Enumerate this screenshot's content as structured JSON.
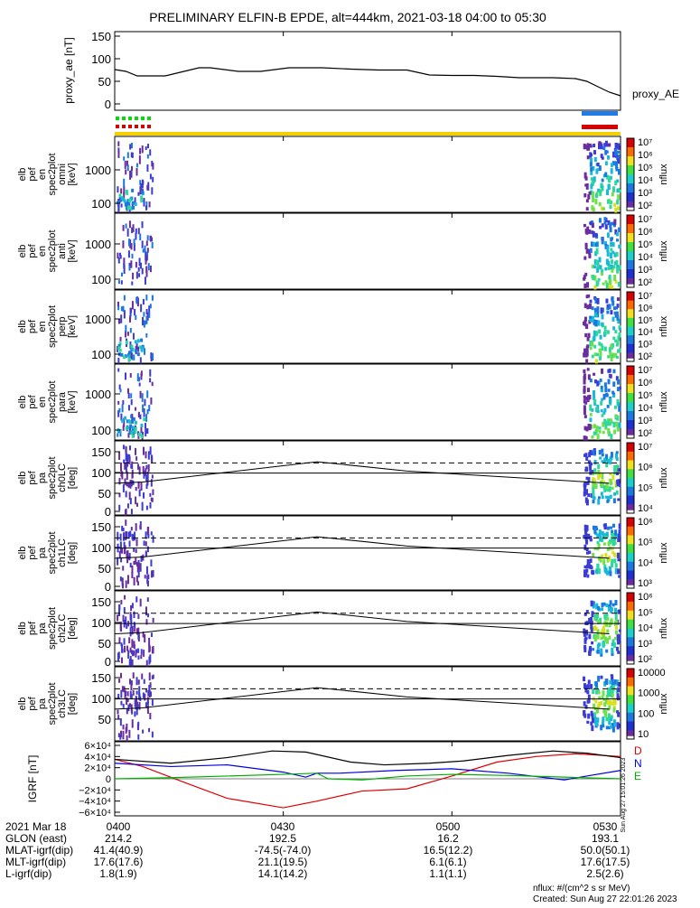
{
  "title": "PRELIMINARY ELFIN-B EPDE, alt=444km, 2021-03-18 04:00 to 05:30",
  "colors": {
    "frame": "#000000",
    "ae_line": "#000000",
    "bar_blue": "#1e7be8",
    "bar_red": "#d80000",
    "bar_green": "#00e000",
    "bar_yellow": "#f5d000",
    "igrf_D": "#e00000",
    "igrf_N": "#0000e0",
    "igrf_E": "#00b000",
    "igrf_total": "#000000"
  },
  "chart_data": [
    {
      "type": "line",
      "ylabel": "proxy_ae [nT]",
      "ylim": [
        0,
        150
      ],
      "yticks": [
        "150",
        "100",
        "50",
        "0"
      ],
      "series": [
        {
          "name": "proxy_AE",
          "x": [
            0,
            2,
            4,
            9,
            15,
            17,
            22,
            26,
            31,
            37,
            42,
            47,
            52,
            56,
            60,
            64,
            68,
            72,
            75,
            78,
            80,
            82,
            84,
            86,
            88,
            90
          ],
          "values": [
            76,
            72,
            62,
            62,
            80,
            80,
            72,
            72,
            80,
            80,
            77,
            75,
            75,
            64,
            63,
            63,
            61,
            58,
            58,
            58,
            57,
            56,
            50,
            38,
            26,
            18
          ]
        }
      ]
    },
    {
      "type": "heatmap",
      "ylabel": "elb pef en spec2plot omni [keV]",
      "yticks": [
        "1000",
        "100"
      ],
      "colorbar": {
        "label": "nflux",
        "ticks": [
          "10⁷",
          "10⁶",
          "10⁵",
          "10⁴",
          "10³",
          "10²"
        ]
      }
    },
    {
      "type": "heatmap",
      "ylabel": "elb pef en spec2plot anti [keV]",
      "yticks": [
        "1000",
        "100"
      ],
      "colorbar": {
        "label": "nflux",
        "ticks": [
          "10⁷",
          "10⁶",
          "10⁵",
          "10⁴",
          "10³",
          "10²"
        ]
      }
    },
    {
      "type": "heatmap",
      "ylabel": "elb pef en spec2plot perp [keV]",
      "yticks": [
        "1000",
        "100"
      ],
      "colorbar": {
        "label": "nflux",
        "ticks": [
          "10⁷",
          "10⁶",
          "10⁵",
          "10⁴",
          "10³",
          "10²"
        ]
      }
    },
    {
      "type": "heatmap",
      "ylabel": "elb pef en spec2plot para [keV]",
      "yticks": [
        "1000",
        "100"
      ],
      "colorbar": {
        "label": "nflux",
        "ticks": [
          "10⁷",
          "10⁶",
          "10⁵",
          "10⁴",
          "10³",
          "10²"
        ]
      }
    },
    {
      "type": "heatmap",
      "ylabel": "elb pef pa spec2plot ch0LC [deg]",
      "yticks": [
        "150",
        "100",
        "50",
        "0"
      ],
      "colorbar": {
        "label": "nflux",
        "ticks": [
          "10⁷",
          "10⁶",
          "10⁵",
          "10⁴"
        ]
      }
    },
    {
      "type": "heatmap",
      "ylabel": "elb pef pa spec2plot ch1LC [deg]",
      "yticks": [
        "150",
        "100",
        "50",
        "0"
      ],
      "colorbar": {
        "label": "nflux",
        "ticks": [
          "10⁶",
          "10⁵",
          "10⁴",
          "10³"
        ]
      }
    },
    {
      "type": "heatmap",
      "ylabel": "elb pef pa spec2plot ch2LC [deg]",
      "yticks": [
        "150",
        "100",
        "50",
        "0"
      ],
      "colorbar": {
        "label": "nflux",
        "ticks": [
          "10⁶",
          "10⁵",
          "10⁴",
          "10³",
          "10²"
        ]
      }
    },
    {
      "type": "heatmap",
      "ylabel": "elb pef pa spec2plot ch3LC [deg]",
      "yticks": [
        "150",
        "100",
        "50"
      ],
      "colorbar": {
        "label": "nflux",
        "ticks": [
          "10000",
          "1000",
          "100",
          "10"
        ]
      }
    },
    {
      "type": "line",
      "ylabel": "IGRF [nT]",
      "ylim": [
        -60000,
        60000
      ],
      "yticks": [
        "6×10⁴",
        "4×10⁴",
        "2×10⁴",
        "0",
        "−2×10⁴",
        "−4×10⁴",
        "−6×10⁴"
      ],
      "legend": [
        "D",
        "N",
        "E"
      ],
      "series": [
        {
          "x": [
            0,
            5,
            12,
            20,
            30,
            36,
            44,
            52,
            60,
            68,
            75,
            82,
            90
          ],
          "values": [
            35000,
            22000,
            -5000,
            -35000,
            -52000,
            -40000,
            -22000,
            -18000,
            5000,
            30000,
            40000,
            45000,
            40000
          ]
        },
        {
          "x": [
            0,
            10,
            20,
            30,
            34,
            36,
            40,
            50,
            60,
            70,
            80,
            84,
            90
          ],
          "values": [
            28000,
            22000,
            25000,
            12000,
            3000,
            10000,
            10000,
            15000,
            18000,
            10000,
            -2000,
            5000,
            15000
          ]
        },
        {
          "x": [
            0,
            10,
            20,
            30,
            36,
            38,
            44,
            52,
            60,
            70,
            80,
            90
          ],
          "values": [
            0,
            2000,
            5000,
            8000,
            10000,
            0,
            -2000,
            5000,
            8000,
            6000,
            3000,
            0
          ]
        },
        {
          "x": [
            0,
            10,
            20,
            28,
            34,
            42,
            48,
            56,
            62,
            70,
            78,
            84,
            90
          ],
          "values": [
            35000,
            28000,
            38000,
            50000,
            48000,
            30000,
            25000,
            28000,
            32000,
            42000,
            50000,
            46000,
            38000
          ]
        }
      ]
    }
  ],
  "model_lines": {
    "x": [
      0,
      5,
      36,
      52,
      88
    ],
    "solid": [
      65,
      68,
      118,
      95,
      65
    ],
    "dashed_upper": 115,
    "center": 90
  },
  "time_axis": [
    "0400",
    "0430",
    "0500",
    "0530"
  ],
  "footer_rows": [
    {
      "label": "2021 Mar 18",
      "values": [
        "0400",
        "0430",
        "0500",
        "0530"
      ]
    },
    {
      "label": "GLON (east)",
      "values": [
        "214.2",
        "192.5",
        "16.2",
        "193.1"
      ]
    },
    {
      "label": "MLAT-igrf(dip)",
      "values": [
        "41.4(40.9)",
        "-74.5(-74.0)",
        "16.5(12.2)",
        "50.0(50.1)"
      ]
    },
    {
      "label": "MLT-igrf(dip)",
      "values": [
        "17.6(17.6)",
        "21.1(19.5)",
        "6.1(6.1)",
        "17.6(17.5)"
      ]
    },
    {
      "label": "L-igrf(dip)",
      "values": [
        "1.8(1.9)",
        "14.1(14.2)",
        "1.1(1.1)",
        "2.5(2.6)"
      ]
    }
  ],
  "legend_proxy": "proxy_AE",
  "nflux_units": "nflux: #/(cm^2 s sr MeV)",
  "created": "Created: Sun Aug 27 22:01:26 2023",
  "side_stamp": "Sun Aug 27 15:01:26 2023"
}
